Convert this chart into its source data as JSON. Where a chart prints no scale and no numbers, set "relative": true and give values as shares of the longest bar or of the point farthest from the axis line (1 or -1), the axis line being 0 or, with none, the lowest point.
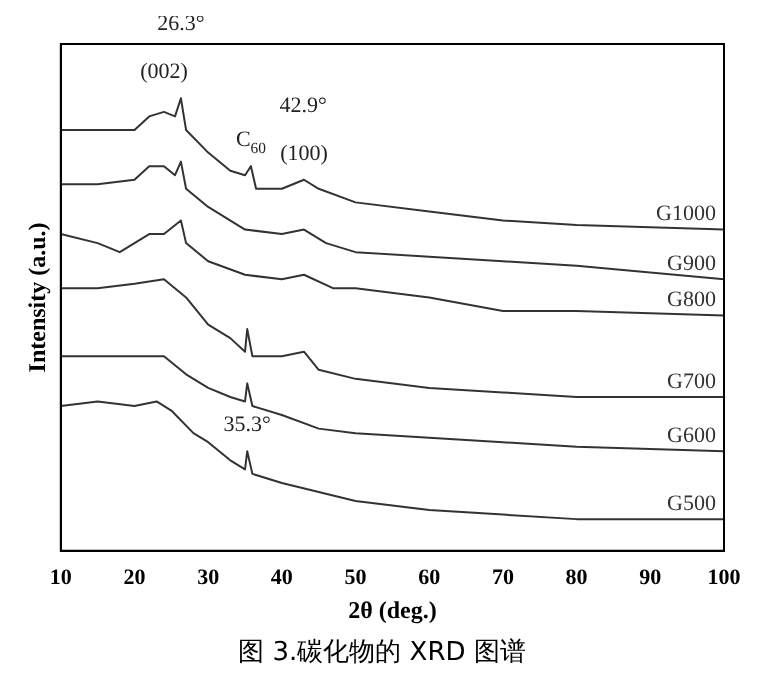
{
  "chart_data": {
    "type": "line",
    "relative": true,
    "xlabel": "2θ (deg.)",
    "ylabel": "Intensity (a.u.)",
    "xlim": [
      10,
      100
    ],
    "xticks": [
      10,
      20,
      30,
      40,
      50,
      60,
      70,
      80,
      90,
      100
    ],
    "grid": false,
    "legend": false,
    "marker": "none",
    "line_style": "solid",
    "series": [
      {
        "name": "G1000",
        "color": "#333333",
        "x": [
          10,
          15,
          20,
          22,
          24,
          25.5,
          26.3,
          27,
          30,
          33,
          35,
          35.8,
          36.5,
          40,
          43,
          45,
          50,
          60,
          70,
          80,
          100
        ],
        "values": [
          0.93,
          0.93,
          0.93,
          0.96,
          0.97,
          0.96,
          1,
          0.93,
          0.88,
          0.84,
          0.83,
          0.85,
          0.8,
          0.8,
          0.82,
          0.8,
          0.77,
          0.75,
          0.73,
          0.72,
          0.71
        ]
      },
      {
        "name": "G900",
        "color": "#333333",
        "x": [
          10,
          15,
          20,
          22,
          24,
          25.5,
          26.3,
          27,
          30,
          35,
          40,
          43,
          46,
          50,
          60,
          70,
          80,
          100
        ],
        "values": [
          0.81,
          0.81,
          0.82,
          0.85,
          0.85,
          0.83,
          0.86,
          0.8,
          0.76,
          0.71,
          0.7,
          0.71,
          0.68,
          0.66,
          0.65,
          0.64,
          0.63,
          0.6
        ]
      },
      {
        "name": "G800",
        "color": "#333333",
        "x": [
          10,
          15,
          18,
          22,
          24,
          26.3,
          27,
          30,
          35,
          40,
          43,
          47,
          50,
          60,
          70,
          80,
          100
        ],
        "values": [
          0.7,
          0.68,
          0.66,
          0.7,
          0.7,
          0.73,
          0.68,
          0.64,
          0.61,
          0.6,
          0.61,
          0.58,
          0.58,
          0.56,
          0.53,
          0.53,
          0.52
        ]
      },
      {
        "name": "G700",
        "color": "#333333",
        "x": [
          10,
          15,
          20,
          24,
          27,
          30,
          33,
          35,
          35.3,
          36,
          40,
          43,
          45,
          50,
          60,
          70,
          80,
          100
        ],
        "values": [
          0.58,
          0.58,
          0.59,
          0.6,
          0.56,
          0.5,
          0.47,
          0.44,
          0.49,
          0.43,
          0.43,
          0.44,
          0.4,
          0.38,
          0.36,
          0.35,
          0.34,
          0.34
        ]
      },
      {
        "name": "G600",
        "color": "#333333",
        "x": [
          10,
          15,
          20,
          24,
          27,
          30,
          33,
          35,
          35.3,
          36,
          40,
          45,
          50,
          60,
          70,
          80,
          100
        ],
        "values": [
          0.43,
          0.43,
          0.43,
          0.43,
          0.39,
          0.36,
          0.34,
          0.33,
          0.37,
          0.32,
          0.3,
          0.27,
          0.26,
          0.25,
          0.24,
          0.23,
          0.22
        ]
      },
      {
        "name": "G500",
        "color": "#333333",
        "x": [
          10,
          15,
          20,
          23,
          25,
          28,
          30,
          33,
          35,
          35.3,
          36,
          40,
          45,
          50,
          55,
          60,
          70,
          80,
          100
        ],
        "values": [
          0.32,
          0.33,
          0.32,
          0.33,
          0.31,
          0.26,
          0.24,
          0.2,
          0.18,
          0.22,
          0.17,
          0.15,
          0.13,
          0.11,
          0.1,
          0.09,
          0.08,
          0.07,
          0.07
        ]
      }
    ],
    "annotations": [
      {
        "text": "(002)",
        "x": 24,
        "y": 0.97
      },
      {
        "text": "26.3°",
        "x": 26.3,
        "y": 1
      },
      {
        "text": "C$_{60}$",
        "x": 35.8,
        "y": 0.85
      },
      {
        "text": "(100)",
        "x": 43,
        "y": 0.82
      },
      {
        "text": "42.9°",
        "x": 42.9,
        "y": 0.82
      },
      {
        "text": "35.3°",
        "x": 35.3,
        "y": 0.22
      },
      "图 3.碳化物的 XRD 图谱"
    ]
  }
}
